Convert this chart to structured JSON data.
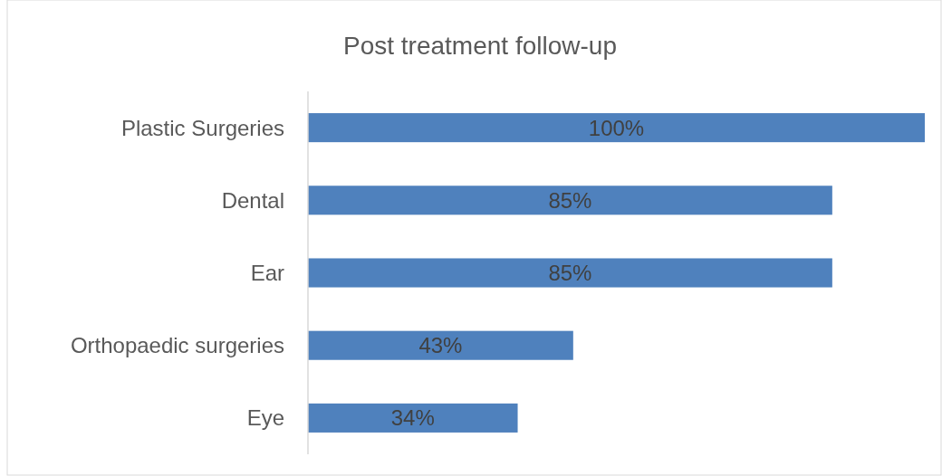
{
  "chart_data": {
    "type": "bar",
    "orientation": "horizontal",
    "title": "Post treatment follow-up",
    "categories": [
      "Plastic Surgeries",
      "Dental",
      "Ear",
      "Orthopaedic surgeries",
      "Eye"
    ],
    "values": [
      100,
      85,
      85,
      43,
      34
    ],
    "value_labels": [
      "100%",
      "85%",
      "85%",
      "43%",
      "34%"
    ],
    "color": "#4f81bd"
  }
}
